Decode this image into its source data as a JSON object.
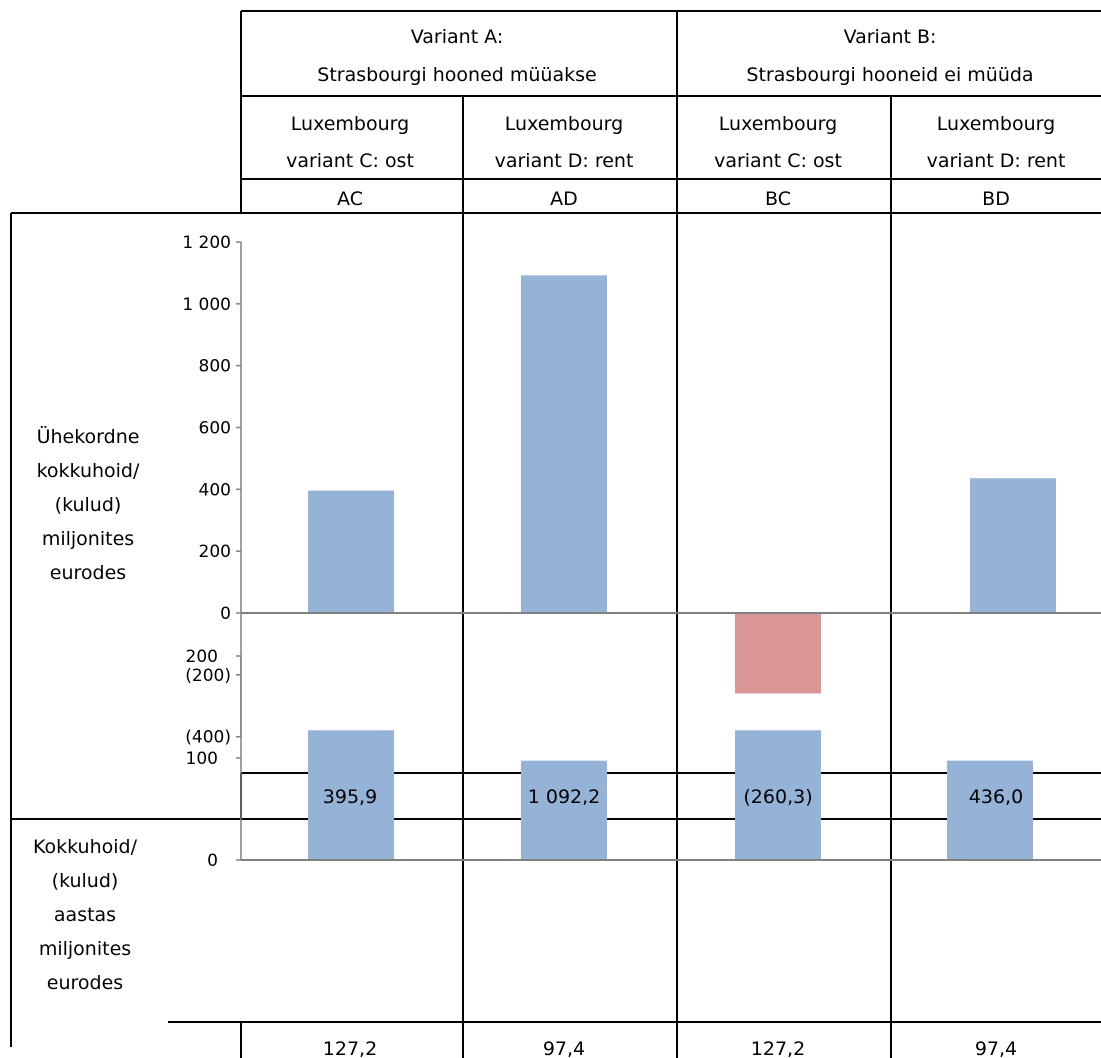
{
  "headers": {
    "group_a": [
      "Variant A:",
      "Strasbourgi hooned müüakse"
    ],
    "group_b": [
      "Variant B:",
      "Strasbourgi hooneid ei müüda"
    ],
    "sub_columns": [
      [
        "Luxembourg",
        "variant C: ost"
      ],
      [
        "Luxembourg",
        "variant D: rent"
      ],
      [
        "Luxembourg",
        "variant C: ost"
      ],
      [
        "Luxembourg",
        "variant D: rent"
      ]
    ]
  },
  "colors": {
    "positive": "#95b3d7",
    "negative": "#d99694",
    "axis": "#808080",
    "grid": "#000000"
  },
  "chart_data": [
    {
      "type": "bar",
      "categories": [
        "AC",
        "AD",
        "BC",
        "BD"
      ],
      "values": [
        395.9,
        1092.2,
        -260.3,
        436.0
      ],
      "value_labels": [
        "395,9",
        "1 092,2",
        "(260,3)",
        "436,0"
      ],
      "ylabel": [
        "Ühekordne",
        "kokkuhoid/",
        "(kulud)",
        "miljonites",
        "eurodes"
      ],
      "ylim": [
        -400,
        1200
      ],
      "yticks": [
        1200,
        1000,
        800,
        600,
        400,
        200,
        0,
        -200,
        -400
      ],
      "ytick_labels": [
        "1 200",
        "1 000",
        "800",
        "600",
        "400",
        "200",
        "0",
        "(200)",
        "(400)"
      ]
    },
    {
      "type": "bar",
      "categories": [
        "AC",
        "AD",
        "BC",
        "BD"
      ],
      "values": [
        127.2,
        97.4,
        127.2,
        97.4
      ],
      "value_labels": [
        "127,2",
        "97,4",
        "127,2",
        "97,4"
      ],
      "ylabel": [
        "Kokkuhoid/",
        "(kulud)",
        "aastas",
        "miljonites",
        "eurodes"
      ],
      "ylim": [
        0,
        200
      ],
      "yticks": [
        200,
        100,
        0
      ],
      "ytick_labels": [
        "200",
        "100",
        "0"
      ]
    }
  ]
}
